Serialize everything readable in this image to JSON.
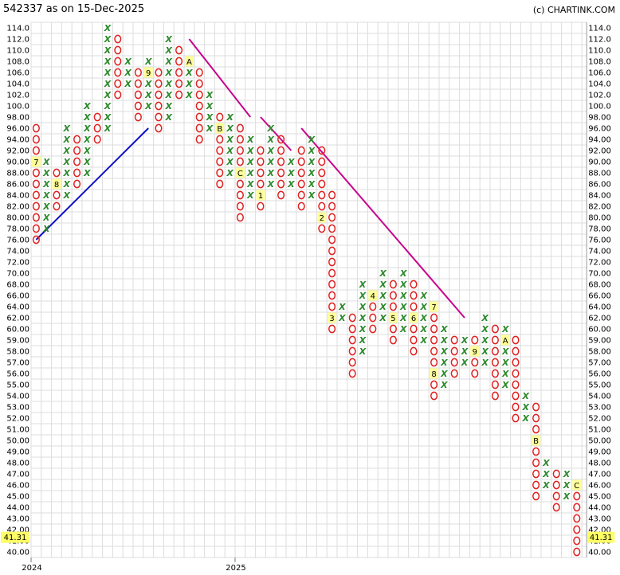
{
  "header": {
    "title": "542337 as on 15-Dec-2025",
    "credit": "(c) CHARTINK.COM"
  },
  "chart_data": {
    "type": "point-and-figure",
    "title": "542337 as on 15-Dec-2025",
    "price_levels": [
      "114.0",
      "112.0",
      "110.0",
      "108.0",
      "106.0",
      "104.0",
      "102.0",
      "100.0",
      "98.00",
      "96.00",
      "94.00",
      "92.00",
      "90.00",
      "88.00",
      "86.00",
      "84.00",
      "82.00",
      "80.00",
      "78.00",
      "76.00",
      "74.00",
      "72.00",
      "70.00",
      "68.00",
      "66.00",
      "64.00",
      "62.00",
      "60.00",
      "59.00",
      "58.00",
      "57.00",
      "56.00",
      "55.00",
      "54.00",
      "53.00",
      "52.00",
      "51.00",
      "50.00",
      "49.00",
      "48.00",
      "47.00",
      "46.00",
      "45.00",
      "44.00",
      "43.00",
      "42.00",
      "41.00",
      "40.00"
    ],
    "ylim": [
      "40.00",
      "114.0"
    ],
    "grid": true,
    "x_labels": [
      {
        "col": 0,
        "label": "2024"
      },
      {
        "col": 20,
        "label": "2025"
      }
    ],
    "current_price": {
      "label": "41.31",
      "value": 41.31
    },
    "columns": [
      {
        "type": "O",
        "top": "96.00",
        "bottom": "76.00",
        "marks": [
          {
            "level": "90.00",
            "label": "7"
          }
        ]
      },
      {
        "type": "X",
        "top": "90.00",
        "bottom": "78.00"
      },
      {
        "type": "O",
        "top": "88.00",
        "bottom": "82.00",
        "marks": [
          {
            "level": "86.00",
            "label": "8"
          }
        ]
      },
      {
        "type": "X",
        "top": "96.00",
        "bottom": "84.00"
      },
      {
        "type": "O",
        "top": "94.00",
        "bottom": "86.00"
      },
      {
        "type": "X",
        "top": "100.0",
        "bottom": "88.00"
      },
      {
        "type": "O",
        "top": "98.00",
        "bottom": "94.00"
      },
      {
        "type": "X",
        "top": "114.0",
        "bottom": "96.00"
      },
      {
        "type": "O",
        "top": "112.0",
        "bottom": "102.0"
      },
      {
        "type": "X",
        "top": "108.0",
        "bottom": "104.0"
      },
      {
        "type": "O",
        "top": "106.0",
        "bottom": "98.00"
      },
      {
        "type": "X",
        "top": "108.0",
        "bottom": "100.0",
        "marks": [
          {
            "level": "106.0",
            "label": "9"
          }
        ]
      },
      {
        "type": "O",
        "top": "106.0",
        "bottom": "96.00"
      },
      {
        "type": "X",
        "top": "112.0",
        "bottom": "98.00"
      },
      {
        "type": "O",
        "top": "110.0",
        "bottom": "102.0"
      },
      {
        "type": "X",
        "top": "108.0",
        "bottom": "102.0",
        "marks": [
          {
            "level": "108.0",
            "label": "A"
          }
        ]
      },
      {
        "type": "O",
        "top": "106.0",
        "bottom": "94.00"
      },
      {
        "type": "X",
        "top": "102.0",
        "bottom": "96.00"
      },
      {
        "type": "O",
        "top": "98.00",
        "bottom": "86.00",
        "marks": [
          {
            "level": "96.00",
            "label": "B"
          }
        ]
      },
      {
        "type": "X",
        "top": "98.00",
        "bottom": "88.00"
      },
      {
        "type": "O",
        "top": "96.00",
        "bottom": "80.00",
        "marks": [
          {
            "level": "88.00",
            "label": "C"
          }
        ]
      },
      {
        "type": "X",
        "top": "94.00",
        "bottom": "84.00"
      },
      {
        "type": "O",
        "top": "92.00",
        "bottom": "82.00",
        "marks": [
          {
            "level": "84.00",
            "label": "1"
          }
        ]
      },
      {
        "type": "X",
        "top": "96.00",
        "bottom": "86.00"
      },
      {
        "type": "O",
        "top": "94.00",
        "bottom": "84.00"
      },
      {
        "type": "X",
        "top": "90.00",
        "bottom": "86.00"
      },
      {
        "type": "O",
        "top": "92.00",
        "bottom": "82.00"
      },
      {
        "type": "X",
        "top": "94.00",
        "bottom": "84.00"
      },
      {
        "type": "O",
        "top": "92.00",
        "bottom": "78.00",
        "marks": [
          {
            "level": "80.00",
            "label": "2"
          }
        ]
      },
      {
        "type": "O",
        "top": "84.00",
        "bottom": "60.00",
        "marks": [
          {
            "level": "62.00",
            "label": "3"
          }
        ]
      },
      {
        "type": "X",
        "top": "64.00",
        "bottom": "62.00"
      },
      {
        "type": "O",
        "top": "62.00",
        "bottom": "56.00"
      },
      {
        "type": "X",
        "top": "68.00",
        "bottom": "58.00"
      },
      {
        "type": "O",
        "top": "66.00",
        "bottom": "60.00",
        "marks": [
          {
            "level": "66.00",
            "label": "4"
          }
        ]
      },
      {
        "type": "X",
        "top": "70.00",
        "bottom": "62.00"
      },
      {
        "type": "O",
        "top": "68.00",
        "bottom": "59.00",
        "marks": [
          {
            "level": "62.00",
            "label": "5"
          }
        ]
      },
      {
        "type": "X",
        "top": "70.00",
        "bottom": "60.00"
      },
      {
        "type": "O",
        "top": "68.00",
        "bottom": "58.00",
        "marks": [
          {
            "level": "62.00",
            "label": "6"
          }
        ]
      },
      {
        "type": "X",
        "top": "66.00",
        "bottom": "59.00"
      },
      {
        "type": "O",
        "top": "64.00",
        "bottom": "54.00",
        "marks": [
          {
            "level": "64.00",
            "label": "7"
          },
          {
            "level": "56.00",
            "label": "8"
          }
        ]
      },
      {
        "type": "X",
        "top": "60.00",
        "bottom": "55.00"
      },
      {
        "type": "O",
        "top": "59.00",
        "bottom": "56.00"
      },
      {
        "type": "X",
        "top": "59.00",
        "bottom": "57.00"
      },
      {
        "type": "O",
        "top": "59.00",
        "bottom": "56.00",
        "marks": [
          {
            "level": "58.00",
            "label": "9"
          }
        ]
      },
      {
        "type": "X",
        "top": "62.00",
        "bottom": "57.00"
      },
      {
        "type": "O",
        "top": "60.00",
        "bottom": "54.00"
      },
      {
        "type": "X",
        "top": "60.00",
        "bottom": "55.00",
        "marks": [
          {
            "level": "59.00",
            "label": "A"
          }
        ]
      },
      {
        "type": "O",
        "top": "59.00",
        "bottom": "52.00"
      },
      {
        "type": "X",
        "top": "54.00",
        "bottom": "52.00"
      },
      {
        "type": "O",
        "top": "53.00",
        "bottom": "45.00",
        "marks": [
          {
            "level": "50.00",
            "label": "B"
          }
        ]
      },
      {
        "type": "X",
        "top": "48.00",
        "bottom": "46.00"
      },
      {
        "type": "O",
        "top": "47.00",
        "bottom": "44.00"
      },
      {
        "type": "X",
        "top": "47.00",
        "bottom": "45.00"
      },
      {
        "type": "O",
        "top": "46.00",
        "bottom": "40.00",
        "marks": [
          {
            "level": "46.00",
            "label": "C"
          }
        ]
      }
    ],
    "trendlines": [
      {
        "color": "#1010c8",
        "from": {
          "col": 0,
          "level": "76.00"
        },
        "to": {
          "col": 11,
          "level": "96.00"
        }
      },
      {
        "color": "#c8008c",
        "from": {
          "col": 15,
          "level": "112.0"
        },
        "to": {
          "col": 21,
          "level": "98.00"
        }
      },
      {
        "color": "#c8008c",
        "from": {
          "col": 22,
          "level": "98.00"
        },
        "to": {
          "col": 25,
          "level": "92.00"
        }
      },
      {
        "color": "#c8008c",
        "from": {
          "col": 26,
          "level": "96.00"
        },
        "to": {
          "col": 42,
          "level": "62.00"
        }
      }
    ],
    "colors": {
      "x": "#2d8a2d",
      "o": "#e02020",
      "grid": "#dcdcdc",
      "label_bg": "#ffff99",
      "price_bg": "#ffff66"
    }
  }
}
